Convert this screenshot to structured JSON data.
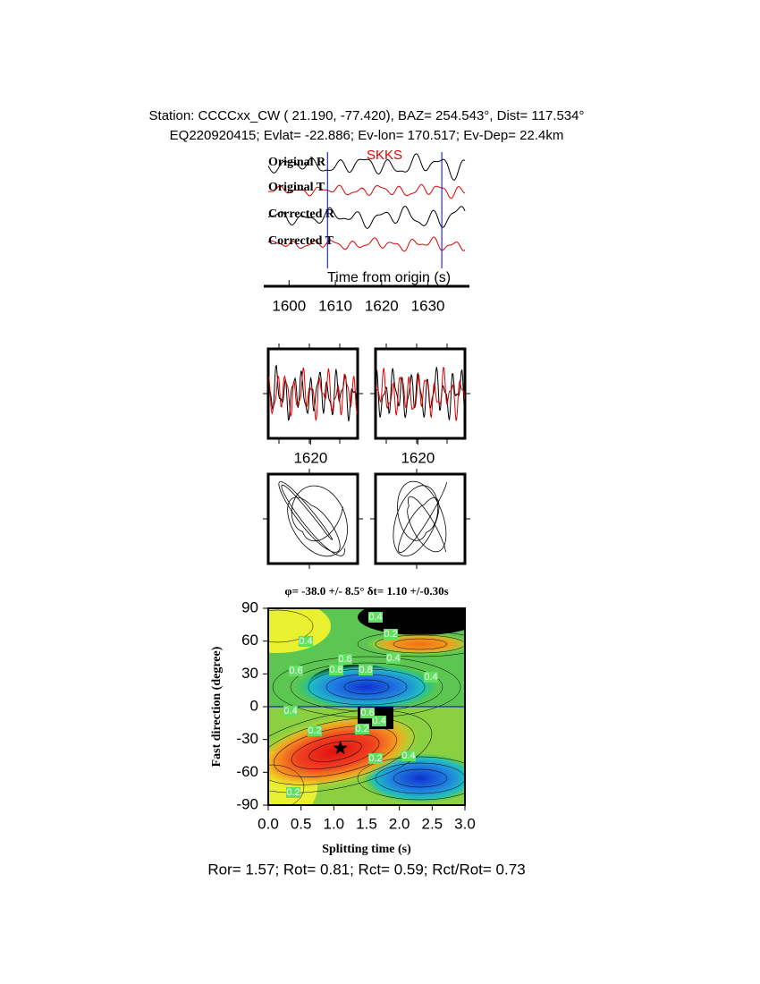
{
  "header": {
    "line1": "Station: CCCCxx_CW (  21.190,  -77.420), BAZ=  254.543°, Dist=  117.534°",
    "line2": "EQ220920415; Evlat= -22.886; Ev-lon= 170.517; Ev-Dep= 22.4km"
  },
  "chart_data": [
    {
      "type": "waveform",
      "traces": [
        "Original R",
        "Original T",
        "Corrected R",
        "Corrected T"
      ],
      "phase": "SKKS",
      "xlabel": "Time from origin (s)",
      "xlim": [
        1595.5,
        1638
      ],
      "xticks": [
        1600,
        1610,
        1620,
        1630
      ],
      "window": [
        1608.3,
        1633
      ]
    },
    {
      "type": "window",
      "xlim": [
        1608.3,
        1633
      ],
      "xticks": [
        1620
      ]
    },
    {
      "type": "window",
      "xlim": [
        1608.3,
        1633
      ],
      "xticks": [
        1620
      ]
    },
    {
      "type": "contour",
      "title": "φ= -38.0 +/- 8.5° δt= 1.10 +/-0.30s",
      "xlabel": "Splitting time (s)",
      "ylabel": "Fast direction (degree)",
      "xlim": [
        0,
        3
      ],
      "ylim": [
        -90,
        90
      ],
      "xticks": [
        {
          "value": 0,
          "label": "0.0"
        },
        0.5,
        {
          "value": 1,
          "label": "1.0"
        },
        1.5,
        {
          "value": 2,
          "label": "2.0"
        },
        2.5,
        {
          "value": 3,
          "label": "3.0"
        }
      ],
      "yticks": [
        90,
        60,
        30,
        0,
        -30,
        -60,
        -90
      ],
      "best": {
        "x": 1.1,
        "y": -38
      },
      "contour_labels": [
        "0.4",
        "0.2",
        "0.4",
        "0.6",
        "0.8",
        "0.8",
        "0.4",
        "0.4",
        "0.6",
        "0.4",
        "0.2",
        "0.2",
        "0.4",
        "0.6",
        "0.2",
        "0.4",
        "0.2"
      ]
    }
  ],
  "footer": "Ror= 1.57; Rot= 0.81; Rct= 0.59; Rct/Rot= 0.73"
}
